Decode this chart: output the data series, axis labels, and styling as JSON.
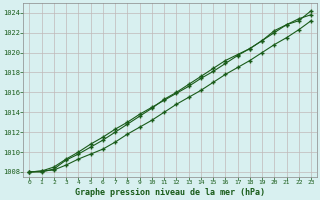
{
  "title": "Graphe pression niveau de la mer (hPa)",
  "background_color": "#d8f0f0",
  "grid_color": "#c0b8b8",
  "line_color": "#1a5c1a",
  "x_values": [
    0,
    1,
    2,
    3,
    4,
    5,
    6,
    7,
    8,
    9,
    10,
    11,
    12,
    13,
    14,
    15,
    16,
    17,
    18,
    19,
    20,
    21,
    22,
    23
  ],
  "line1": [
    1008.0,
    1008.1,
    1008.2,
    1008.7,
    1009.3,
    1009.8,
    1010.3,
    1011.0,
    1011.8,
    1012.5,
    1013.2,
    1014.0,
    1014.8,
    1015.5,
    1016.2,
    1017.0,
    1017.8,
    1018.5,
    1019.2,
    1020.0,
    1020.8,
    1021.5,
    1022.3,
    1023.2
  ],
  "line2": [
    1008.0,
    1008.0,
    1008.3,
    1009.2,
    1009.8,
    1010.5,
    1011.2,
    1012.0,
    1012.8,
    1013.6,
    1014.4,
    1015.3,
    1016.0,
    1016.8,
    1017.6,
    1018.4,
    1019.2,
    1019.8,
    1020.4,
    1021.2,
    1022.2,
    1022.8,
    1023.2,
    1024.2
  ],
  "line3": [
    1008.0,
    1008.1,
    1008.5,
    1009.3,
    1010.0,
    1010.8,
    1011.5,
    1012.3,
    1013.0,
    1013.8,
    1014.5,
    1015.2,
    1015.9,
    1016.6,
    1017.4,
    1018.1,
    1018.9,
    1019.7,
    1020.4,
    1021.2,
    1022.0,
    1022.8,
    1023.4,
    1023.8
  ],
  "ylim": [
    1007.5,
    1025.0
  ],
  "yticks": [
    1008,
    1010,
    1012,
    1014,
    1016,
    1018,
    1020,
    1022,
    1024
  ],
  "xlim": [
    -0.5,
    23.5
  ],
  "xticks": [
    0,
    1,
    2,
    3,
    4,
    5,
    6,
    7,
    8,
    9,
    10,
    11,
    12,
    13,
    14,
    15,
    16,
    17,
    18,
    19,
    20,
    21,
    22,
    23
  ]
}
